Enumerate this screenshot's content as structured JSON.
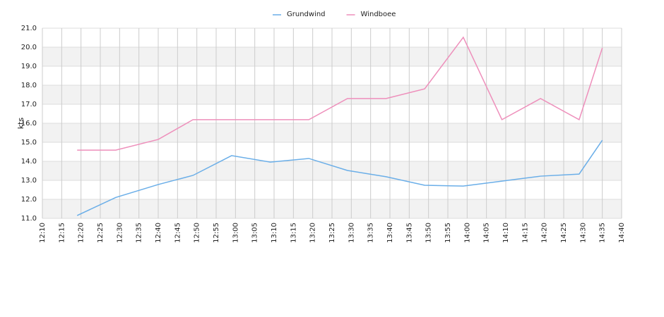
{
  "chart_data": {
    "type": "line",
    "y_label": "kts",
    "x": [
      "12:19",
      "12:29",
      "12:40",
      "12:49",
      "12:59",
      "13:09",
      "13:19",
      "13:29",
      "13:39",
      "13:49",
      "13:59",
      "14:09",
      "14:19",
      "14:29",
      "14:35"
    ],
    "series": [
      {
        "name": "Grundwind",
        "color": "#6aaee8",
        "values": [
          11.15,
          12.1,
          12.78,
          13.26,
          14.3,
          13.96,
          14.15,
          13.52,
          13.19,
          12.74,
          12.7,
          12.96,
          13.22,
          13.33,
          15.11
        ]
      },
      {
        "name": "Windboee",
        "color": "#ee8fbb",
        "values": [
          14.59,
          14.59,
          15.15,
          16.19,
          16.19,
          16.19,
          16.19,
          17.3,
          17.3,
          17.81,
          20.52,
          16.19,
          17.3,
          16.19,
          19.96
        ]
      }
    ],
    "xlim": [
      "12:10",
      "14:40"
    ],
    "xticks": [
      "12:10",
      "12:15",
      "12:20",
      "12:25",
      "12:30",
      "12:35",
      "12:40",
      "12:45",
      "12:50",
      "12:55",
      "13:00",
      "13:05",
      "13:10",
      "13:15",
      "13:20",
      "13:25",
      "13:30",
      "13:35",
      "13:40",
      "13:45",
      "13:50",
      "13:55",
      "14:00",
      "14:05",
      "14:10",
      "14:15",
      "14:20",
      "14:25",
      "14:30",
      "14:35",
      "14:40"
    ],
    "ylim": [
      11,
      21
    ],
    "yticks": [
      {
        "value": 11,
        "label": "11.0"
      },
      {
        "value": 12,
        "label": "12.0"
      },
      {
        "value": 13,
        "label": "13.0"
      },
      {
        "value": 14,
        "label": "14.0"
      },
      {
        "value": 15,
        "label": "15.0"
      },
      {
        "value": 16,
        "label": "16.0"
      },
      {
        "value": 17,
        "label": "17.0"
      },
      {
        "value": 18,
        "label": "18.0"
      },
      {
        "value": 19,
        "label": "19.0"
      },
      {
        "value": 20,
        "label": "20.0"
      },
      {
        "value": 21,
        "label": "21.0"
      }
    ],
    "grid": true,
    "legend": "top"
  }
}
